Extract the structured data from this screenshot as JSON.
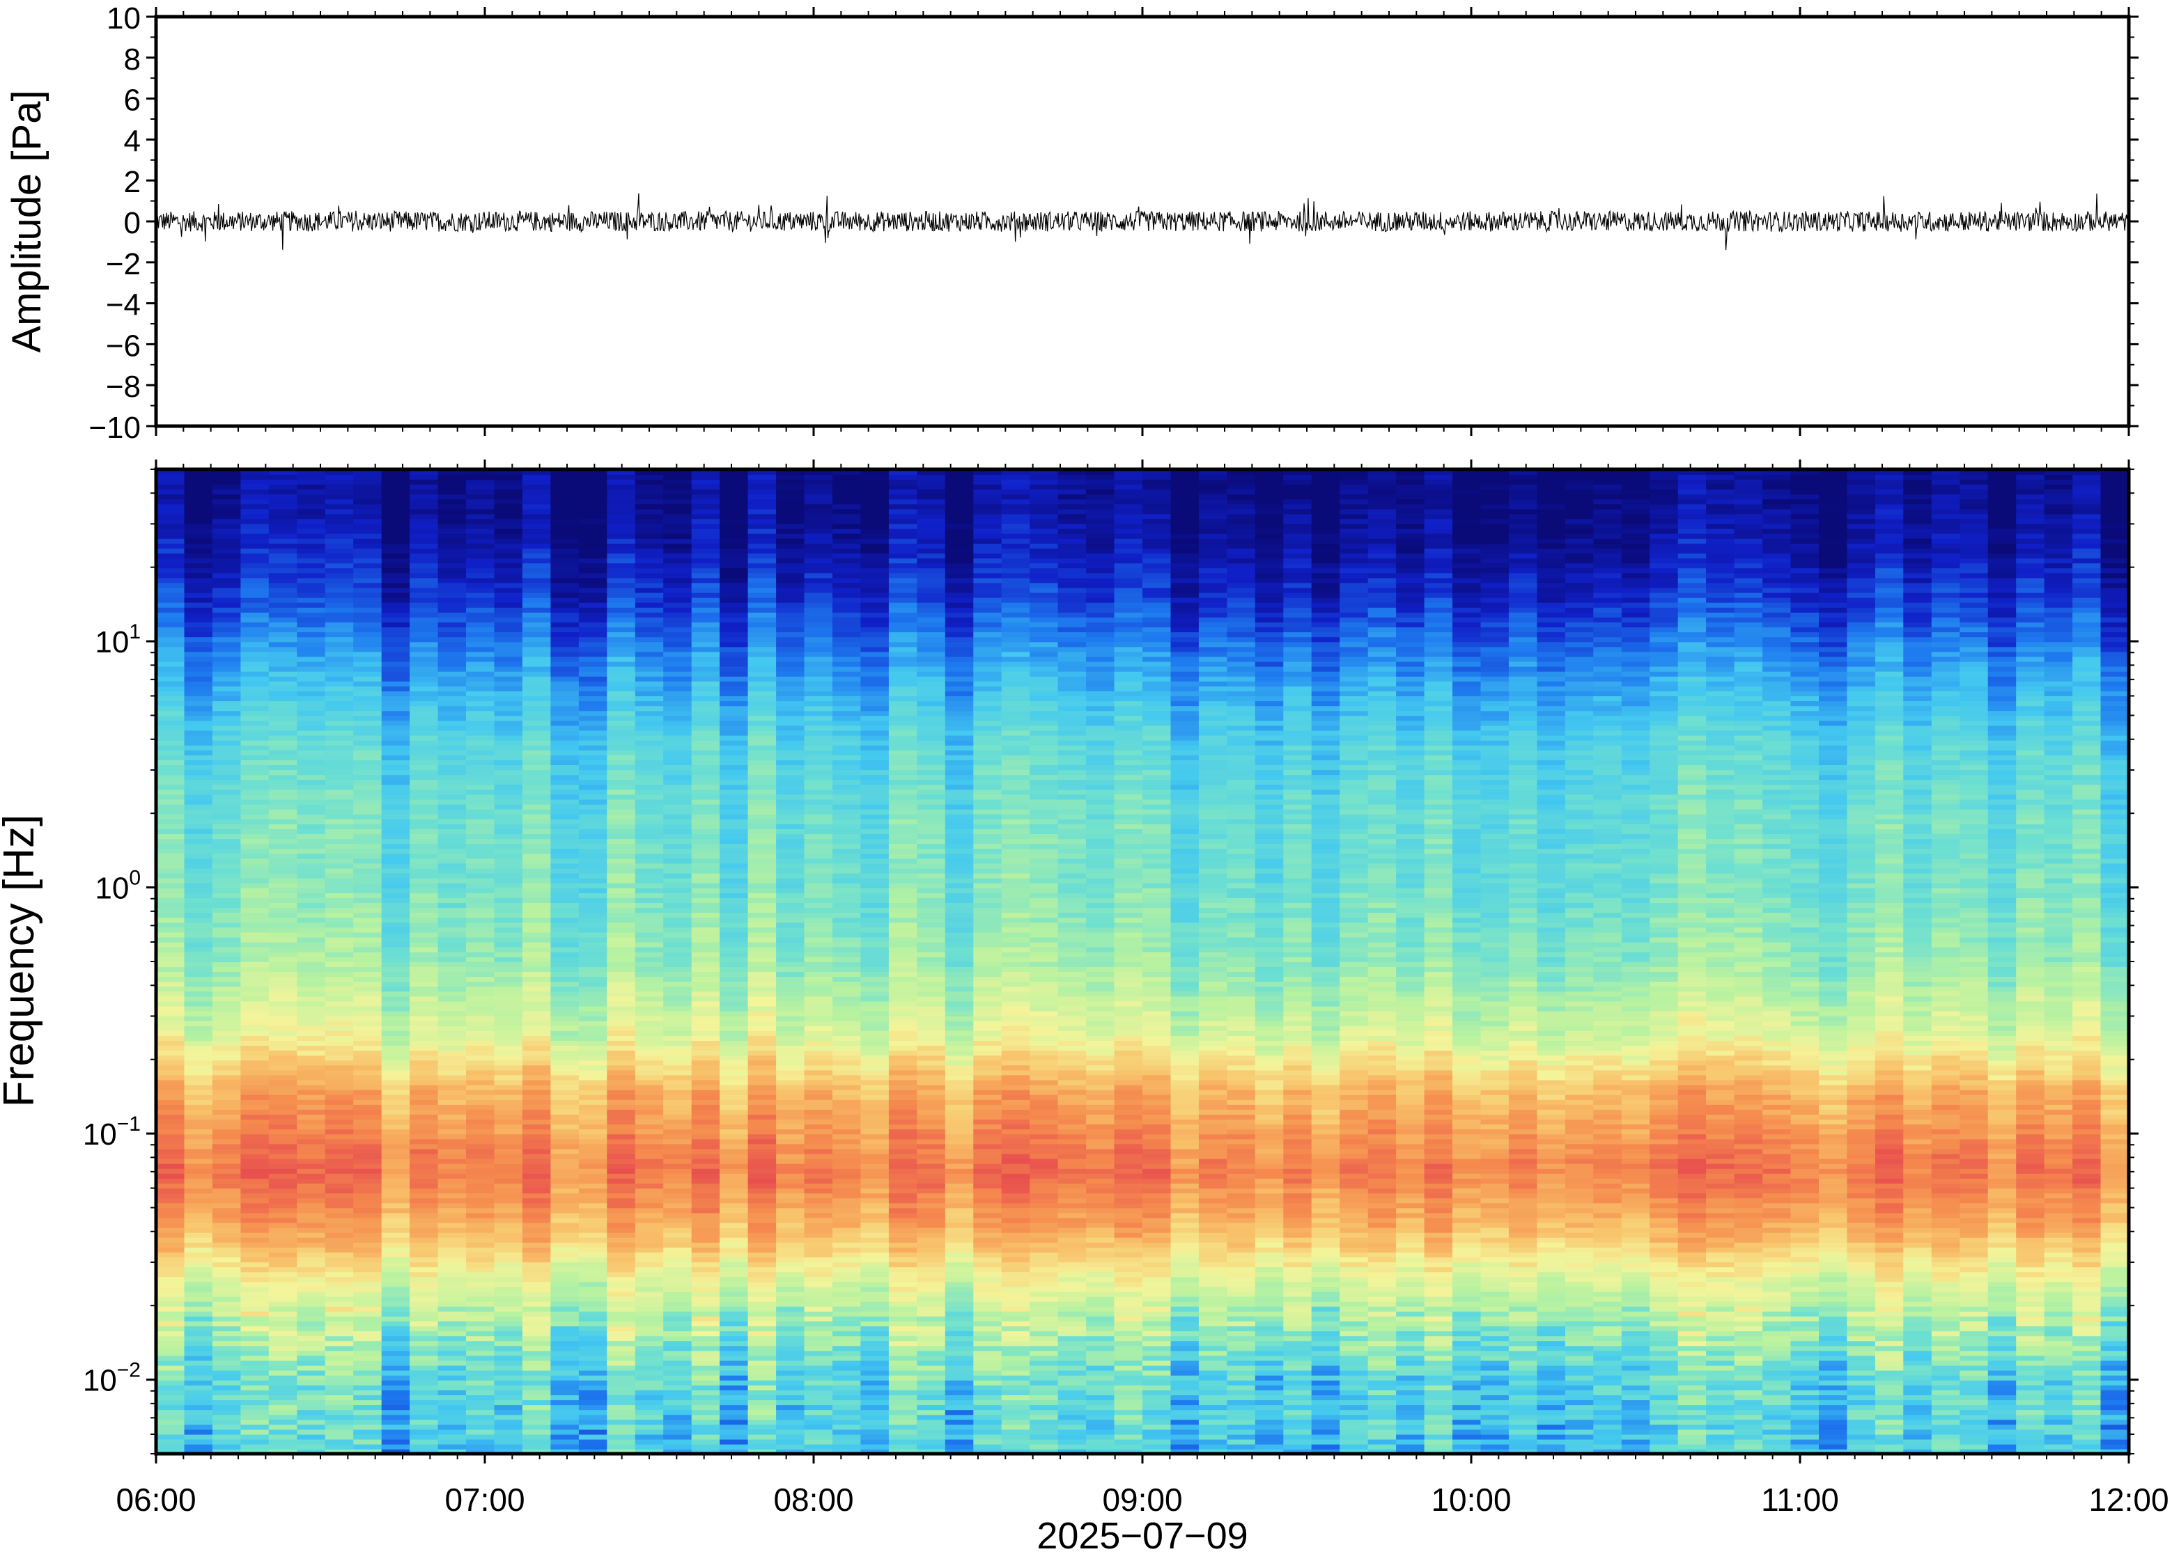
{
  "chart_data": [
    {
      "type": "line",
      "panel": "waveform",
      "ylabel": "Amplitude [Pa]",
      "ylim": [
        -10,
        10
      ],
      "yticks": [
        -10,
        -8,
        -6,
        -4,
        -2,
        0,
        2,
        4,
        6,
        8,
        10
      ],
      "ytick_labels": [
        "−10",
        "−8",
        "−6",
        "−4",
        "−2",
        "0",
        "2",
        "4",
        "6",
        "8",
        "10"
      ],
      "xlim_hours": [
        6,
        12
      ],
      "trace": {
        "center": 0,
        "typical_envelope": [
          -0.5,
          0.5
        ],
        "peak_envelope": [
          -1.3,
          1.4
        ],
        "color": "#000000"
      }
    },
    {
      "type": "heatmap",
      "panel": "spectrogram",
      "ylabel": "Frequency [Hz]",
      "yscale": "log",
      "ylim": [
        0.005,
        50
      ],
      "yticks": [
        0.01,
        0.1,
        1,
        10
      ],
      "ytick_labels": [
        {
          "base": "10",
          "exp": "−2"
        },
        {
          "base": "10",
          "exp": "−1"
        },
        {
          "base": "10",
          "exp": "0"
        },
        {
          "base": "10",
          "exp": "1"
        }
      ],
      "xlim_hours": [
        6,
        12
      ],
      "colormap": "jet-like",
      "colormap_stops": [
        "#0a0a78",
        "#1020c8",
        "#1e7aef",
        "#43c8f0",
        "#6fe0d0",
        "#b8f2a0",
        "#f4f49a",
        "#f8c26a",
        "#f58a4e",
        "#e8504e"
      ],
      "bands": [
        {
          "freq_hz": 40,
          "level": 0.02
        },
        {
          "freq_hz": 25,
          "level": 0.06
        },
        {
          "freq_hz": 15,
          "level": 0.13
        },
        {
          "freq_hz": 8,
          "level": 0.26
        },
        {
          "freq_hz": 4,
          "level": 0.38
        },
        {
          "freq_hz": 2,
          "level": 0.43
        },
        {
          "freq_hz": 1,
          "level": 0.45
        },
        {
          "freq_hz": 0.5,
          "level": 0.5
        },
        {
          "freq_hz": 0.25,
          "level": 0.62
        },
        {
          "freq_hz": 0.15,
          "level": 0.8
        },
        {
          "freq_hz": 0.07,
          "level": 0.92
        },
        {
          "freq_hz": 0.04,
          "level": 0.8
        },
        {
          "freq_hz": 0.025,
          "level": 0.62
        },
        {
          "freq_hz": 0.015,
          "level": 0.5
        },
        {
          "freq_hz": 0.01,
          "level": 0.4
        },
        {
          "freq_hz": 0.006,
          "level": 0.36
        }
      ]
    }
  ],
  "xaxis": {
    "date_label": "2025−07−09",
    "ticks_hours": [
      6,
      7,
      8,
      9,
      10,
      11,
      12
    ],
    "tick_labels": [
      "06:00",
      "07:00",
      "08:00",
      "09:00",
      "10:00",
      "11:00",
      "12:00"
    ]
  }
}
